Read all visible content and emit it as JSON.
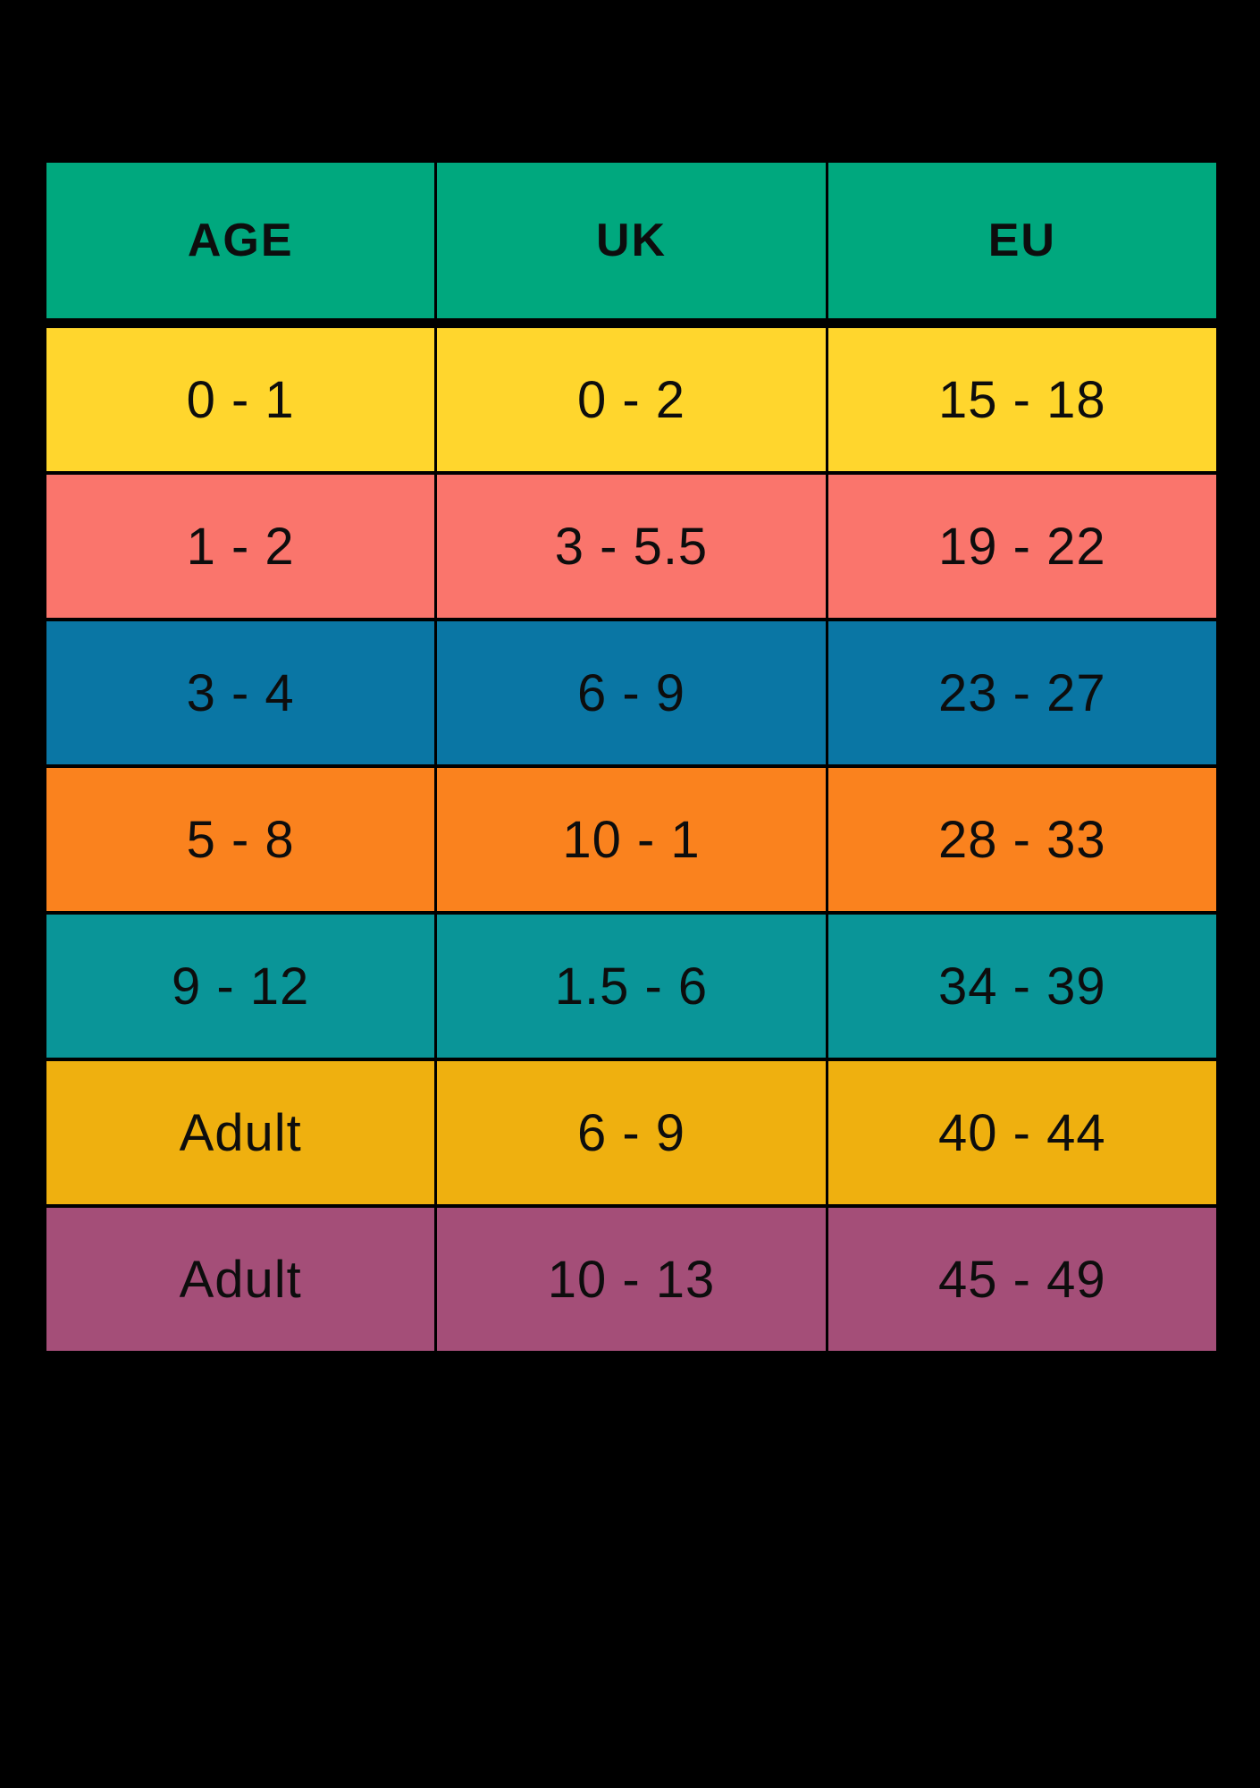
{
  "styles": {
    "page_background": "#000000",
    "text_color": "#0d0d0d",
    "header_bg": "#00a87e",
    "row_colors": [
      "#ffd62d",
      "#fa756c",
      "#0a76a4",
      "#fa821e",
      "#0a9598",
      "#efb00f",
      "#a44e78"
    ]
  },
  "chart_data": {
    "type": "table",
    "title": "",
    "columns": [
      "AGE",
      "UK",
      "EU"
    ],
    "rows": [
      [
        "0 - 1",
        "0 - 2",
        "15 - 18"
      ],
      [
        "1 - 2",
        "3 - 5.5",
        "19 - 22"
      ],
      [
        "3 - 4",
        "6 - 9",
        "23 - 27"
      ],
      [
        "5 - 8",
        "10 - 1",
        "28 - 33"
      ],
      [
        "9 - 12",
        "1.5 - 6",
        "34 - 39"
      ],
      [
        "Adult",
        "6 - 9",
        "40 - 44"
      ],
      [
        "Adult",
        "10 - 13",
        "45 - 49"
      ]
    ],
    "legend": "none",
    "grid": "black gaps between solid colored cells"
  }
}
